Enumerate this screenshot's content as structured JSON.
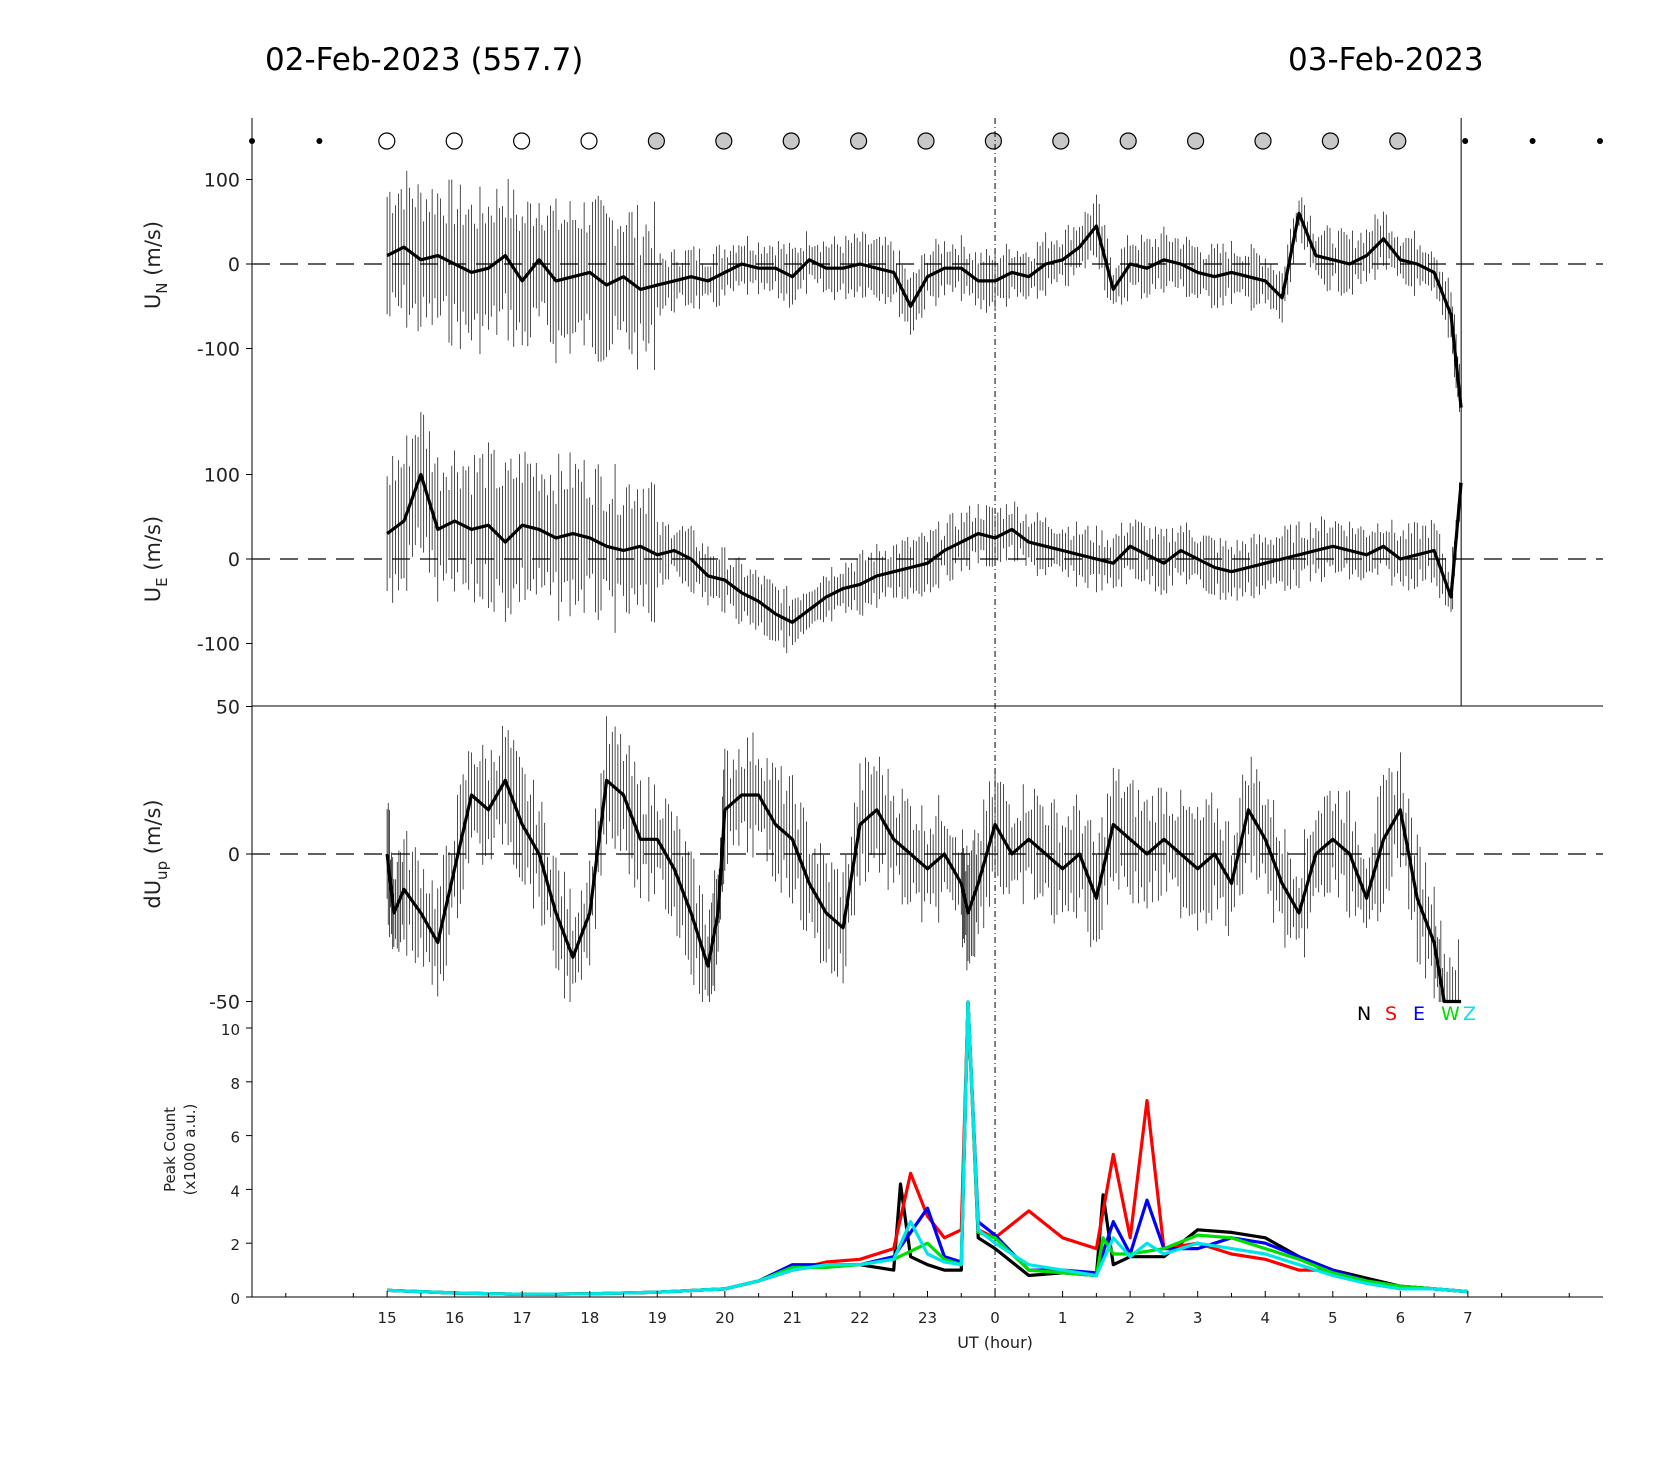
{
  "header": {
    "left_title": "02-Feb-2023 (557.7)",
    "right_title": "03-Feb-2023"
  },
  "chart_data": [
    {
      "type": "line",
      "panel": "northward wind",
      "ylabel": "U",
      "ylabel_sub": "N",
      "ylabel_unit": "(m/s)",
      "ylim": [
        -175,
        175
      ],
      "yticks": [
        -100,
        0,
        100
      ],
      "zero_line": "dashed",
      "error_bars": true,
      "series": [
        {
          "x": [
            15.0,
            15.25,
            15.5,
            15.75,
            16.0,
            16.25,
            16.5,
            16.75,
            17.0,
            17.25,
            17.5,
            17.75,
            18.0,
            18.25,
            18.5,
            18.75,
            19.0,
            19.25,
            19.5,
            19.75,
            20.0,
            20.25,
            20.5,
            20.75,
            21.0,
            21.25,
            21.5,
            21.75,
            22.0,
            22.25,
            22.5,
            22.75,
            23.0,
            23.25,
            23.5,
            23.75,
            24.0,
            24.25,
            24.5,
            24.75,
            25.0,
            25.25,
            25.5,
            25.75,
            26.0,
            26.25,
            26.5,
            26.75,
            27.0,
            27.25,
            27.5,
            27.75,
            28.0,
            28.25,
            28.5,
            28.75,
            29.0,
            29.25,
            29.5,
            29.75,
            30.0,
            30.25,
            30.5,
            30.75,
            30.9
          ],
          "y": [
            10,
            20,
            5,
            10,
            0,
            -10,
            -5,
            10,
            -20,
            5,
            -20,
            -15,
            -10,
            -25,
            -15,
            -30,
            -25,
            -20,
            -15,
            -20,
            -10,
            0,
            -5,
            -5,
            -15,
            5,
            -5,
            -5,
            0,
            -5,
            -10,
            -50,
            -15,
            -5,
            -5,
            -20,
            -20,
            -10,
            -15,
            0,
            5,
            20,
            45,
            -30,
            0,
            -5,
            5,
            0,
            -10,
            -15,
            -10,
            -15,
            -20,
            -40,
            60,
            10,
            5,
            0,
            10,
            30,
            5,
            0,
            -10,
            -60,
            -170
          ]
        }
      ]
    },
    {
      "type": "line",
      "panel": "eastward wind",
      "ylabel": "U",
      "ylabel_sub": "E",
      "ylabel_unit": "(m/s)",
      "ylim": [
        -175,
        175
      ],
      "yticks": [
        -100,
        0,
        100
      ],
      "zero_line": "dashed",
      "error_bars": true,
      "series": [
        {
          "x": [
            15.0,
            15.25,
            15.5,
            15.75,
            16.0,
            16.25,
            16.5,
            16.75,
            17.0,
            17.25,
            17.5,
            17.75,
            18.0,
            18.25,
            18.5,
            18.75,
            19.0,
            19.25,
            19.5,
            19.75,
            20.0,
            20.25,
            20.5,
            20.75,
            21.0,
            21.25,
            21.5,
            21.75,
            22.0,
            22.25,
            22.5,
            22.75,
            23.0,
            23.25,
            23.5,
            23.75,
            24.0,
            24.25,
            24.5,
            24.75,
            25.0,
            25.25,
            25.5,
            25.75,
            26.0,
            26.25,
            26.5,
            26.75,
            27.0,
            27.25,
            27.5,
            27.75,
            28.0,
            28.25,
            28.5,
            28.75,
            29.0,
            29.25,
            29.5,
            29.75,
            30.0,
            30.25,
            30.5,
            30.75,
            30.9
          ],
          "y": [
            30,
            45,
            100,
            35,
            45,
            35,
            40,
            20,
            40,
            35,
            25,
            30,
            25,
            15,
            10,
            15,
            5,
            10,
            0,
            -20,
            -25,
            -40,
            -50,
            -65,
            -75,
            -60,
            -45,
            -35,
            -30,
            -20,
            -15,
            -10,
            -5,
            10,
            20,
            30,
            25,
            35,
            20,
            15,
            10,
            5,
            0,
            -5,
            15,
            5,
            -5,
            10,
            0,
            -10,
            -15,
            -10,
            -5,
            0,
            5,
            10,
            15,
            10,
            5,
            15,
            0,
            5,
            10,
            -45,
            90
          ]
        }
      ]
    },
    {
      "type": "line",
      "panel": "vertical wind difference",
      "ylabel": "dU",
      "ylabel_sub": "up",
      "ylabel_unit": "(m/s)",
      "ylim": [
        -50,
        50
      ],
      "yticks": [
        -50,
        0,
        50
      ],
      "zero_line": "dashed",
      "error_bars": true,
      "series": [
        {
          "x": [
            15.0,
            15.1,
            15.25,
            15.5,
            15.75,
            16.0,
            16.25,
            16.5,
            16.75,
            17.0,
            17.25,
            17.5,
            17.75,
            18.0,
            18.25,
            18.5,
            18.75,
            19.0,
            19.25,
            19.5,
            19.75,
            19.9,
            20.0,
            20.25,
            20.5,
            20.75,
            21.0,
            21.25,
            21.5,
            21.75,
            22.0,
            22.25,
            22.5,
            22.75,
            23.0,
            23.25,
            23.5,
            23.6,
            23.75,
            24.0,
            24.25,
            24.5,
            24.75,
            25.0,
            25.25,
            25.5,
            25.75,
            26.0,
            26.25,
            26.5,
            26.75,
            27.0,
            27.25,
            27.5,
            27.75,
            28.0,
            28.25,
            28.5,
            28.75,
            29.0,
            29.25,
            29.5,
            29.75,
            30.0,
            30.25,
            30.5,
            30.65,
            30.9
          ],
          "y": [
            0,
            -20,
            -12,
            -20,
            -30,
            -5,
            20,
            15,
            25,
            10,
            0,
            -20,
            -35,
            -20,
            25,
            20,
            5,
            5,
            -5,
            -20,
            -38,
            -20,
            15,
            20,
            20,
            10,
            5,
            -10,
            -20,
            -25,
            10,
            15,
            5,
            0,
            -5,
            0,
            -10,
            -20,
            -10,
            10,
            0,
            5,
            0,
            -5,
            0,
            -15,
            10,
            5,
            0,
            5,
            0,
            -5,
            0,
            -10,
            15,
            5,
            -10,
            -20,
            0,
            5,
            0,
            -15,
            5,
            15,
            -15,
            -30,
            -50,
            -50
          ]
        }
      ]
    },
    {
      "type": "line",
      "panel": "peak count",
      "ylabel": "Peak Count",
      "ylabel_unit": "(x1000 a.u.)",
      "ylim": [
        0,
        11
      ],
      "yticks": [
        0,
        2,
        4,
        6,
        8,
        10
      ],
      "xlabel": "UT (hour)",
      "x_ticks": [
        "15",
        "16",
        "17",
        "18",
        "19",
        "20",
        "21",
        "22",
        "23",
        "0",
        "1",
        "2",
        "3",
        "4",
        "5",
        "6",
        "7"
      ],
      "x_tick_values": [
        15,
        16,
        17,
        18,
        19,
        20,
        21,
        22,
        23,
        24,
        25,
        26,
        27,
        28,
        29,
        30,
        31
      ],
      "xlim": [
        13,
        33
      ],
      "legend_position": "top-right",
      "categories": [
        "N",
        "S",
        "E",
        "W",
        "Z"
      ],
      "colors": {
        "N": "#000000",
        "S": "#ff0000",
        "E": "#0000ff",
        "W": "#00dd00",
        "Z": "#00e6e6"
      },
      "series": [
        {
          "name": "N",
          "x": [
            15,
            16,
            17,
            18,
            19,
            20,
            20.5,
            21,
            21.5,
            22,
            22.5,
            22.6,
            22.75,
            23,
            23.25,
            23.5,
            23.6,
            23.75,
            24,
            24.5,
            25,
            25.5,
            25.6,
            25.75,
            26,
            26.5,
            27,
            27.5,
            28,
            28.5,
            29,
            29.5,
            30,
            30.5,
            31
          ],
          "y": [
            0.25,
            0.15,
            0.1,
            0.12,
            0.18,
            0.3,
            0.6,
            1.0,
            1.2,
            1.2,
            1.0,
            4.2,
            1.5,
            1.2,
            1.0,
            1.0,
            11,
            2.2,
            1.8,
            0.8,
            0.9,
            0.8,
            3.8,
            1.2,
            1.5,
            1.5,
            2.5,
            2.4,
            2.2,
            1.5,
            1.0,
            0.7,
            0.4,
            0.3,
            0.2
          ]
        },
        {
          "name": "S",
          "x": [
            15,
            16,
            17,
            18,
            19,
            20,
            20.5,
            21,
            21.5,
            22,
            22.5,
            22.75,
            23,
            23.25,
            23.5,
            23.6,
            23.75,
            24,
            24.5,
            25,
            25.5,
            25.75,
            26,
            26.25,
            26.5,
            27,
            27.5,
            28,
            28.5,
            29,
            29.5,
            30,
            30.5,
            31
          ],
          "y": [
            0.25,
            0.15,
            0.1,
            0.12,
            0.18,
            0.3,
            0.6,
            1.0,
            1.3,
            1.4,
            1.8,
            4.6,
            3.0,
            2.2,
            2.5,
            11,
            2.5,
            2.2,
            3.2,
            2.2,
            1.8,
            5.3,
            2.2,
            7.3,
            1.8,
            2.0,
            1.6,
            1.4,
            1.0,
            1.0,
            0.6,
            0.3,
            0.3,
            0.2
          ]
        },
        {
          "name": "E",
          "x": [
            15,
            16,
            17,
            18,
            19,
            20,
            20.5,
            21,
            21.5,
            22,
            22.5,
            23,
            23.25,
            23.5,
            23.6,
            23.75,
            24,
            24.5,
            25,
            25.5,
            25.75,
            26,
            26.25,
            26.5,
            27,
            27.5,
            28,
            28.5,
            29,
            29.5,
            30,
            30.5,
            31
          ],
          "y": [
            0.25,
            0.15,
            0.1,
            0.12,
            0.18,
            0.3,
            0.6,
            1.2,
            1.2,
            1.2,
            1.5,
            3.3,
            1.5,
            1.3,
            11,
            2.8,
            2.3,
            1.0,
            1.0,
            0.9,
            2.8,
            1.6,
            3.6,
            1.8,
            1.8,
            2.2,
            2.0,
            1.5,
            1.0,
            0.6,
            0.4,
            0.3,
            0.2
          ]
        },
        {
          "name": "W",
          "x": [
            15,
            16,
            17,
            18,
            19,
            20,
            20.5,
            21,
            21.5,
            22,
            22.5,
            23,
            23.25,
            23.5,
            23.6,
            23.75,
            24,
            24.5,
            25,
            25.5,
            25.6,
            25.75,
            26,
            26.5,
            27,
            27.5,
            28,
            28.5,
            29,
            29.5,
            30,
            30.5,
            31
          ],
          "y": [
            0.25,
            0.15,
            0.1,
            0.12,
            0.18,
            0.3,
            0.6,
            1.1,
            1.1,
            1.2,
            1.4,
            2.0,
            1.4,
            1.2,
            11,
            2.4,
            2.2,
            1.0,
            0.9,
            0.8,
            2.2,
            1.6,
            1.6,
            1.8,
            2.3,
            2.2,
            1.8,
            1.4,
            0.9,
            0.6,
            0.4,
            0.3,
            0.2
          ]
        },
        {
          "name": "Z",
          "x": [
            15,
            16,
            17,
            18,
            19,
            20,
            20.5,
            21,
            21.5,
            22,
            22.5,
            22.75,
            23,
            23.25,
            23.5,
            23.6,
            23.75,
            24,
            24.5,
            25,
            25.5,
            25.75,
            26,
            26.25,
            26.5,
            27,
            27.5,
            28,
            28.5,
            29,
            29.5,
            30,
            30.5,
            31
          ],
          "y": [
            0.25,
            0.15,
            0.1,
            0.12,
            0.18,
            0.3,
            0.6,
            1.0,
            1.2,
            1.2,
            1.4,
            2.8,
            1.6,
            1.3,
            1.2,
            11,
            2.5,
            2.0,
            1.2,
            1.0,
            0.8,
            2.2,
            1.5,
            2.0,
            1.6,
            2.0,
            1.8,
            1.6,
            1.2,
            0.8,
            0.5,
            0.3,
            0.3,
            0.2
          ]
        }
      ]
    }
  ],
  "moon_phase_markers": [
    "dot",
    "dot",
    "open",
    "open",
    "open",
    "open",
    "grey",
    "grey",
    "grey",
    "grey",
    "grey",
    "grey",
    "grey",
    "grey",
    "grey",
    "grey",
    "grey",
    "grey",
    "dot",
    "dot",
    "dot"
  ]
}
